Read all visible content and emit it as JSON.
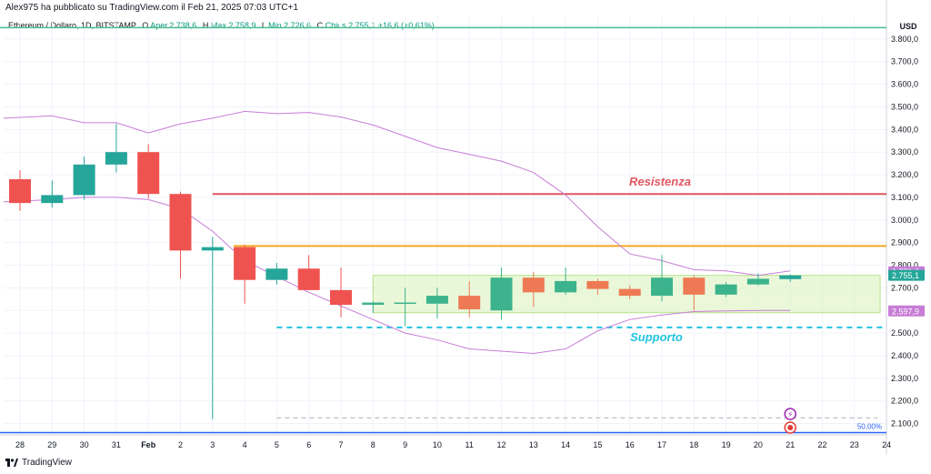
{
  "header": {
    "published": "Alex975 ha pubblicato su TradingView.com il Feb 21, 2025 07:03 UTC+1"
  },
  "legend": {
    "symbol": "Ethereum / Dollaro, 1D, BITSTAMP",
    "open_label": "O",
    "open": "Aper.2.738,6",
    "high_label": "H",
    "high": "Max.2.758,9",
    "low_label": "L",
    "low": "Min.2.726,6",
    "close_label": "C",
    "close": "Chius.2.755,1",
    "change": "+16,6 (+0,61%)"
  },
  "footer": {
    "brand": "TradingView"
  },
  "colors": {
    "up": "#26a69a",
    "down": "#ef5350",
    "resistance": "#e05661",
    "support": "#22c3e0",
    "orange_line": "#f5a623",
    "bollinger": "#c77dd6",
    "top_line": "#4cbb8f",
    "blue_line": "#2962ff",
    "range_box": "#d9f2b9"
  },
  "chart_data": {
    "type": "candlestick",
    "currency_label": "USD",
    "ylim": [
      2050,
      3900
    ],
    "y_ticks": [
      {
        "value": 3800,
        "label": "3.800,0"
      },
      {
        "value": 3700,
        "label": "3.700,0"
      },
      {
        "value": 3600,
        "label": "3.600,0"
      },
      {
        "value": 3500,
        "label": "3.500,0"
      },
      {
        "value": 3400,
        "label": "3.400,0"
      },
      {
        "value": 3300,
        "label": "3.300,0"
      },
      {
        "value": 3200,
        "label": "3.200,0"
      },
      {
        "value": 3100,
        "label": "3.100,0"
      },
      {
        "value": 3000,
        "label": "3.000,0"
      },
      {
        "value": 2900,
        "label": "2.900,0"
      },
      {
        "value": 2800,
        "label": "2.800,0"
      },
      {
        "value": 2700,
        "label": "2.700,0"
      },
      {
        "value": 2600,
        "label": "2.600,0"
      },
      {
        "value": 2500,
        "label": "2.500,0"
      },
      {
        "value": 2400,
        "label": "2.400,0"
      },
      {
        "value": 2300,
        "label": "2.300,0"
      },
      {
        "value": 2200,
        "label": "2.200,0"
      },
      {
        "value": 2100,
        "label": "2.100,0"
      }
    ],
    "x_ticks": [
      {
        "i": 0,
        "label": "28"
      },
      {
        "i": 1,
        "label": "29"
      },
      {
        "i": 2,
        "label": "30"
      },
      {
        "i": 3,
        "label": "31"
      },
      {
        "i": 4,
        "label": "Feb"
      },
      {
        "i": 5,
        "label": "2"
      },
      {
        "i": 6,
        "label": "3"
      },
      {
        "i": 7,
        "label": "4"
      },
      {
        "i": 8,
        "label": "5"
      },
      {
        "i": 9,
        "label": "6"
      },
      {
        "i": 10,
        "label": "7"
      },
      {
        "i": 11,
        "label": "8"
      },
      {
        "i": 12,
        "label": "9"
      },
      {
        "i": 13,
        "label": "10"
      },
      {
        "i": 14,
        "label": "11"
      },
      {
        "i": 15,
        "label": "12"
      },
      {
        "i": 16,
        "label": "13"
      },
      {
        "i": 17,
        "label": "14"
      },
      {
        "i": 18,
        "label": "15"
      },
      {
        "i": 19,
        "label": "16"
      },
      {
        "i": 20,
        "label": "17"
      },
      {
        "i": 21,
        "label": "18"
      },
      {
        "i": 22,
        "label": "19"
      },
      {
        "i": 23,
        "label": "20"
      },
      {
        "i": 24,
        "label": "21"
      },
      {
        "i": 25,
        "label": "22"
      },
      {
        "i": 26,
        "label": "23"
      },
      {
        "i": 27,
        "label": "24"
      }
    ],
    "candles": [
      {
        "date": "Jan 28",
        "o": 3180,
        "h": 3220,
        "l": 3040,
        "c": 3075
      },
      {
        "date": "Jan 29",
        "o": 3075,
        "h": 3175,
        "l": 3055,
        "c": 3110
      },
      {
        "date": "Jan 30",
        "o": 3110,
        "h": 3280,
        "l": 3090,
        "c": 3245
      },
      {
        "date": "Jan 31",
        "o": 3245,
        "h": 3425,
        "l": 3210,
        "c": 3300
      },
      {
        "date": "Feb 1",
        "o": 3300,
        "h": 3335,
        "l": 3095,
        "c": 3115
      },
      {
        "date": "Feb 2",
        "o": 3115,
        "h": 3125,
        "l": 2740,
        "c": 2865
      },
      {
        "date": "Feb 3",
        "o": 2865,
        "h": 2925,
        "l": 2120,
        "c": 2880
      },
      {
        "date": "Feb 4",
        "o": 2880,
        "h": 2890,
        "l": 2630,
        "c": 2735
      },
      {
        "date": "Feb 5",
        "o": 2735,
        "h": 2810,
        "l": 2715,
        "c": 2785
      },
      {
        "date": "Feb 6",
        "o": 2785,
        "h": 2845,
        "l": 2690,
        "c": 2690
      },
      {
        "date": "Feb 7",
        "o": 2690,
        "h": 2790,
        "l": 2570,
        "c": 2625
      },
      {
        "date": "Feb 8",
        "o": 2625,
        "h": 2640,
        "l": 2590,
        "c": 2635
      },
      {
        "date": "Feb 9",
        "o": 2630,
        "h": 2700,
        "l": 2530,
        "c": 2635
      },
      {
        "date": "Feb 10",
        "o": 2630,
        "h": 2700,
        "l": 2565,
        "c": 2665
      },
      {
        "date": "Feb 11",
        "o": 2665,
        "h": 2730,
        "l": 2570,
        "c": 2605
      },
      {
        "date": "Feb 12",
        "o": 2600,
        "h": 2790,
        "l": 2560,
        "c": 2745
      },
      {
        "date": "Feb 13",
        "o": 2745,
        "h": 2770,
        "l": 2615,
        "c": 2680
      },
      {
        "date": "Feb 14",
        "o": 2680,
        "h": 2790,
        "l": 2670,
        "c": 2730
      },
      {
        "date": "Feb 15",
        "o": 2730,
        "h": 2740,
        "l": 2670,
        "c": 2695
      },
      {
        "date": "Feb 16",
        "o": 2695,
        "h": 2710,
        "l": 2650,
        "c": 2665
      },
      {
        "date": "Feb 17",
        "o": 2665,
        "h": 2845,
        "l": 2640,
        "c": 2745
      },
      {
        "date": "Feb 18",
        "o": 2745,
        "h": 2755,
        "l": 2600,
        "c": 2670
      },
      {
        "date": "Feb 19",
        "o": 2670,
        "h": 2725,
        "l": 2660,
        "c": 2715
      },
      {
        "date": "Feb 20",
        "o": 2715,
        "h": 2765,
        "l": 2710,
        "c": 2740
      },
      {
        "date": "Feb 21",
        "o": 2738.6,
        "h": 2758.9,
        "l": 2726.6,
        "c": 2755.1
      }
    ],
    "bollinger_upper": [
      3450,
      3460,
      3430,
      3430,
      3385,
      3425,
      3450,
      3480,
      3470,
      3475,
      3455,
      3420,
      3370,
      3320,
      3290,
      3260,
      3210,
      3110,
      2970,
      2850,
      2820,
      2780,
      2775,
      2755,
      2775
    ],
    "bollinger_lower": [
      3080,
      3090,
      3100,
      3100,
      3090,
      3050,
      2950,
      2820,
      2750,
      2680,
      2620,
      2560,
      2500,
      2470,
      2430,
      2420,
      2410,
      2430,
      2510,
      2560,
      2580,
      2595,
      2597.9,
      2600,
      2600
    ],
    "resistance": {
      "value": 3115,
      "label": "Resistenza",
      "from_i": 6
    },
    "support": {
      "value": 2525,
      "label": "Supporto",
      "from_i": 8
    },
    "orange_level": {
      "value": 2885,
      "from_i": 7
    },
    "range_box": {
      "from_i": 11,
      "to_i": 26.8,
      "top": 2755,
      "bottom": 2590
    },
    "top_level": 3850,
    "fib_level": {
      "value": 2060,
      "label": "50,00%"
    },
    "dashed_gray_level": 2125,
    "price_tags": [
      {
        "value": 2771.0,
        "label": "2.771,0",
        "color": "#c77dd6"
      },
      {
        "value": 2755.1,
        "label": "2.755,1",
        "color": "#26a69a"
      },
      {
        "value": 2597.9,
        "label": "2.597,9",
        "color": "#c77dd6"
      }
    ]
  }
}
